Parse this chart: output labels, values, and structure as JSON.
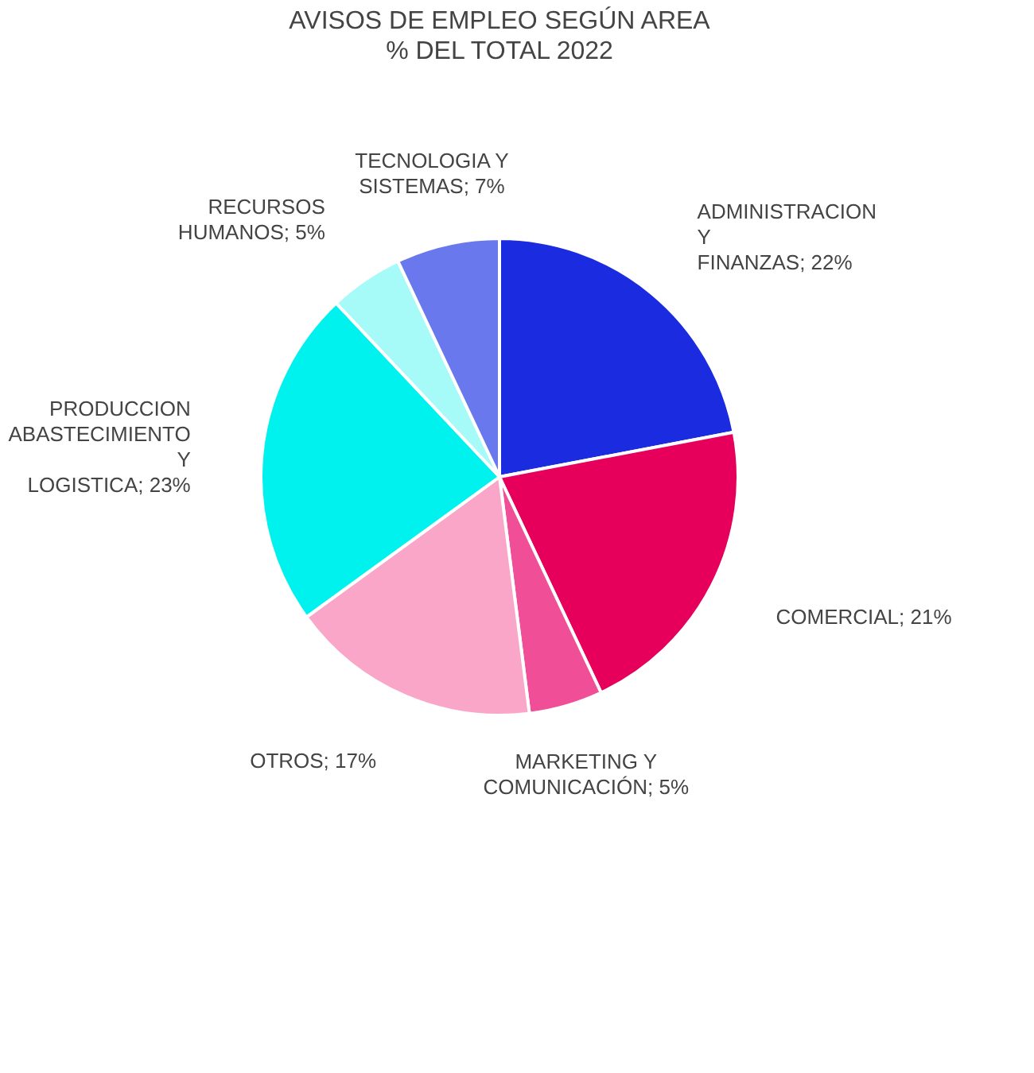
{
  "chart_data": {
    "type": "pie",
    "title": "AVISOS DE EMPLEO SEGÚN AREA",
    "subtitle": "% DEL TOTAL 2022",
    "categories": [
      "ADMINISTRACION Y FINANZAS",
      "COMERCIAL",
      "MARKETING Y COMUNICACIÓN",
      "OTROS",
      "PRODUCCION ABASTECIMIENTO Y LOGISTICA",
      "RECURSOS HUMANOS",
      "TECNOLOGIA Y SISTEMAS"
    ],
    "values": [
      22,
      21,
      5,
      17,
      23,
      5,
      7
    ],
    "value_labels": [
      "22%",
      "21%",
      "5%",
      "17%",
      "23%",
      "5%",
      "7%"
    ],
    "colors": [
      "#1a2be0",
      "#e6005c",
      "#f04f98",
      "#f9a6c9",
      "#00f2ee",
      "#a6fbf8",
      "#6a78ee"
    ],
    "legend": false
  }
}
